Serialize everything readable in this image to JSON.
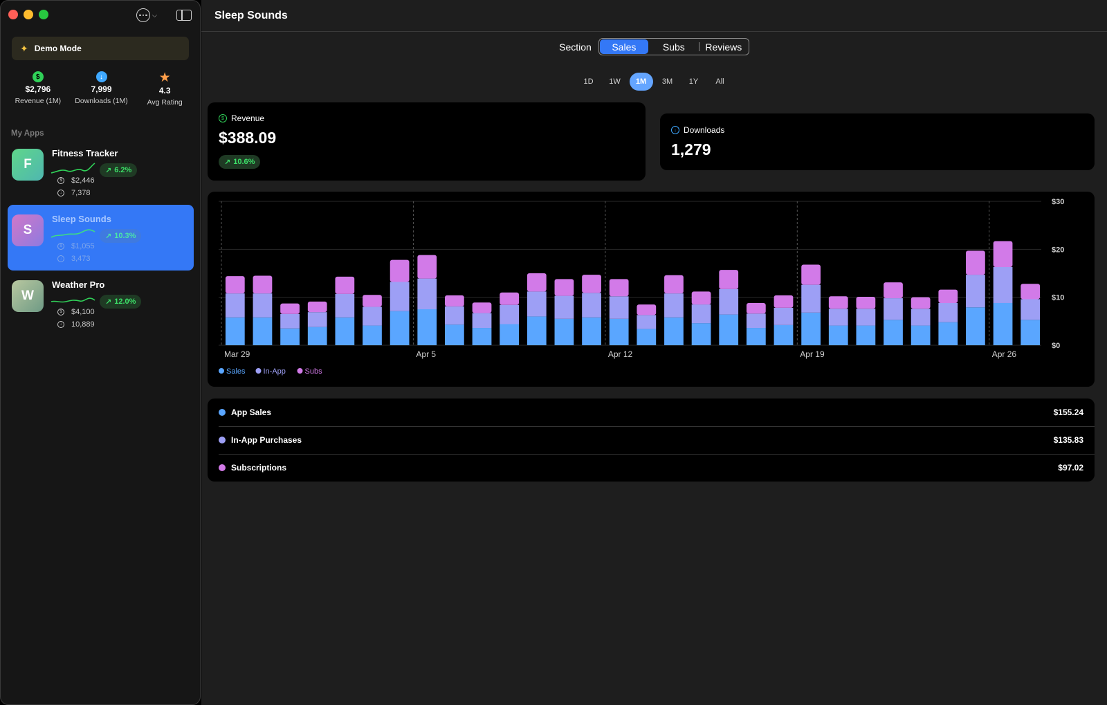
{
  "window": {
    "title": "Sleep Sounds"
  },
  "sidebar": {
    "demo_label": "Demo Mode",
    "stats": [
      {
        "icon": "dollar-icon",
        "value": "$2,796",
        "label": "Revenue (1M)"
      },
      {
        "icon": "download-icon",
        "value": "7,999",
        "label": "Downloads (1M)"
      },
      {
        "icon": "star-icon",
        "value": "4.3",
        "label": "Avg Rating"
      }
    ],
    "section_label": "My Apps",
    "apps": [
      {
        "initial": "F",
        "name": "Fitness Tracker",
        "change": "6.2%",
        "revenue": "$2,446",
        "downloads": "7,378",
        "selected": false
      },
      {
        "initial": "S",
        "name": "Sleep Sounds",
        "change": "10.3%",
        "revenue": "$1,055",
        "downloads": "3,473",
        "selected": true
      },
      {
        "initial": "W",
        "name": "Weather Pro",
        "change": "12.0%",
        "revenue": "$4,100",
        "downloads": "10,889",
        "selected": false
      }
    ]
  },
  "section": {
    "label": "Section",
    "options": [
      "Sales",
      "Subs",
      "Reviews"
    ],
    "selected": "Sales"
  },
  "ranges": {
    "options": [
      "1D",
      "1W",
      "1M",
      "3M",
      "1Y",
      "All"
    ],
    "selected": "1M"
  },
  "revenue_card": {
    "title": "Revenue",
    "value": "$388.09",
    "change": "10.6%"
  },
  "downloads_card": {
    "title": "Downloads",
    "value": "1,279"
  },
  "chart_data": {
    "type": "bar",
    "stacked": true,
    "categories": [
      "Mar 29",
      "Mar 30",
      "Mar 31",
      "Apr 1",
      "Apr 2",
      "Apr 3",
      "Apr 4",
      "Apr 5",
      "Apr 6",
      "Apr 7",
      "Apr 8",
      "Apr 9",
      "Apr 10",
      "Apr 11",
      "Apr 12",
      "Apr 13",
      "Apr 14",
      "Apr 15",
      "Apr 16",
      "Apr 17",
      "Apr 18",
      "Apr 19",
      "Apr 20",
      "Apr 21",
      "Apr 22",
      "Apr 23",
      "Apr 24",
      "Apr 25",
      "Apr 26",
      "Apr 27"
    ],
    "x_tick_labels": [
      "Mar 29",
      "Apr 5",
      "Apr 12",
      "Apr 19",
      "Apr 26"
    ],
    "y_ticks": [
      "$0",
      "$10",
      "$20",
      "$30"
    ],
    "ylim": [
      0,
      30
    ],
    "grid": true,
    "legend_position": "bottom-left",
    "series": [
      {
        "name": "Sales",
        "color": "#5aa6ff",
        "values": [
          5.8,
          5.8,
          3.5,
          3.8,
          5.8,
          4.1,
          7.1,
          7.5,
          4.3,
          3.6,
          4.4,
          6.0,
          5.5,
          5.8,
          5.5,
          3.4,
          5.8,
          4.6,
          6.4,
          3.6,
          4.2,
          6.8,
          4.1,
          4.1,
          5.3,
          4.1,
          4.8,
          7.9,
          8.8,
          5.3
        ]
      },
      {
        "name": "In-App",
        "color": "#9d9ff5",
        "values": [
          5.0,
          5.0,
          3.0,
          3.1,
          4.9,
          3.9,
          6.1,
          6.4,
          3.8,
          3.1,
          4.0,
          5.2,
          4.8,
          5.1,
          4.7,
          2.9,
          5.0,
          3.9,
          5.3,
          3.0,
          3.6,
          5.8,
          3.5,
          3.5,
          4.5,
          3.5,
          4.0,
          6.8,
          7.5,
          4.3
        ]
      },
      {
        "name": "Subs",
        "color": "#d27ae8",
        "values": [
          3.6,
          3.7,
          2.2,
          2.2,
          3.6,
          2.5,
          4.6,
          4.9,
          2.3,
          2.2,
          2.6,
          3.8,
          3.5,
          3.8,
          3.6,
          2.2,
          3.8,
          2.7,
          4.0,
          2.2,
          2.6,
          4.2,
          2.6,
          2.5,
          3.3,
          2.4,
          2.8,
          5.0,
          5.4,
          3.2
        ]
      }
    ]
  },
  "breakdown": [
    {
      "label": "App Sales",
      "value": "$155.24",
      "color": "#5aa6ff"
    },
    {
      "label": "In-App Purchases",
      "value": "$135.83",
      "color": "#9d9ff5"
    },
    {
      "label": "Subscriptions",
      "value": "$97.02",
      "color": "#d27ae8"
    }
  ]
}
